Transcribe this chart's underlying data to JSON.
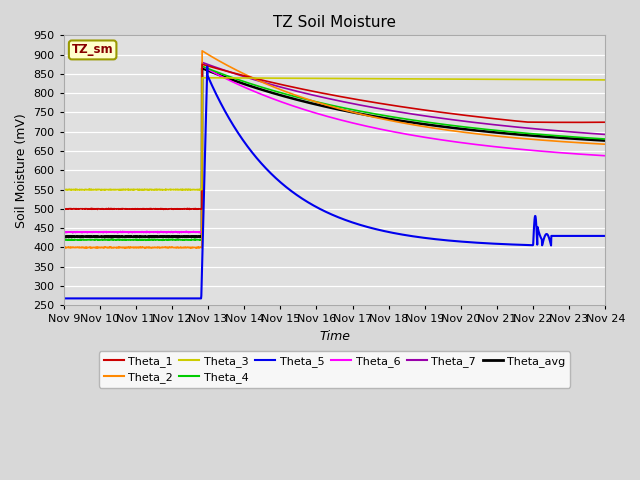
{
  "title": "TZ Soil Moisture",
  "xlabel": "Time",
  "ylabel": "Soil Moisture (mV)",
  "ylim": [
    250,
    950
  ],
  "yticks": [
    250,
    300,
    350,
    400,
    450,
    500,
    550,
    600,
    650,
    700,
    750,
    800,
    850,
    900,
    950
  ],
  "x_labels": [
    "Nov 9",
    "Nov 10",
    "Nov 11",
    "Nov 12",
    "Nov 13",
    "Nov 14",
    "Nov 15",
    "Nov 16",
    "Nov 17",
    "Nov 18",
    "Nov 19",
    "Nov 20",
    "Nov 21",
    "Nov 22",
    "Nov 23",
    "Nov 24"
  ],
  "series_colors": {
    "Theta_1": "#cc0000",
    "Theta_2": "#ff8800",
    "Theta_3": "#cccc00",
    "Theta_4": "#00cc00",
    "Theta_5": "#0000ee",
    "Theta_6": "#ff00ff",
    "Theta_7": "#9900aa",
    "Theta_avg": "#000000"
  },
  "bg_color": "#d8d8d8",
  "plot_bg_color": "#e0e0e0",
  "label_box_color": "#ffffcc",
  "label_border_color": "#999900",
  "label_text_color": "#880000",
  "t_rain": 3.83,
  "t_total": 15
}
